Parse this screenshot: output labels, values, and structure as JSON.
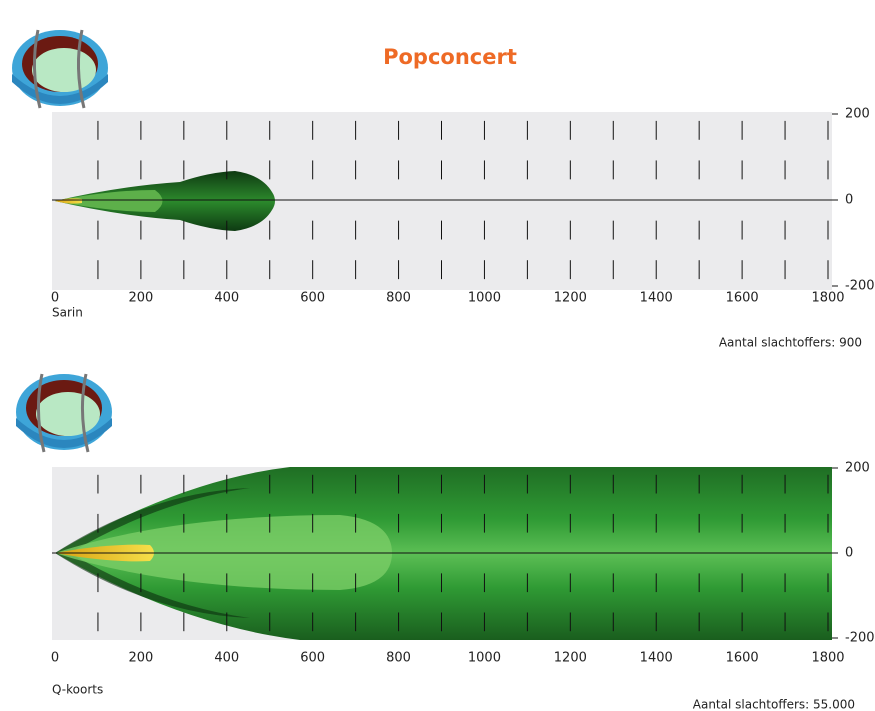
{
  "title": "Popconcert",
  "panels": [
    {
      "agent": "Sarin",
      "casualties": "Aantal slachtoffers: 900",
      "xlim": [
        0,
        1800
      ],
      "ylim": [
        -200,
        200
      ],
      "xticks": [
        0,
        200,
        400,
        600,
        800,
        1000,
        1200,
        1400,
        1600,
        1800
      ],
      "minor_xticks": [
        100,
        300,
        500,
        700,
        900,
        1100,
        1300,
        1500,
        1700
      ],
      "yticks": [
        200,
        0,
        -200
      ]
    },
    {
      "agent": "Q-koorts",
      "casualties": "Aantal slachtoffers: 55.000",
      "xlim": [
        0,
        1800
      ],
      "ylim": [
        -200,
        200
      ],
      "xticks": [
        0,
        200,
        400,
        600,
        800,
        1000,
        1200,
        1400,
        1600,
        1800
      ],
      "minor_xticks": [
        100,
        300,
        500,
        700,
        900,
        1100,
        1300,
        1500,
        1700
      ],
      "yticks": [
        200,
        0,
        -200
      ]
    }
  ]
}
